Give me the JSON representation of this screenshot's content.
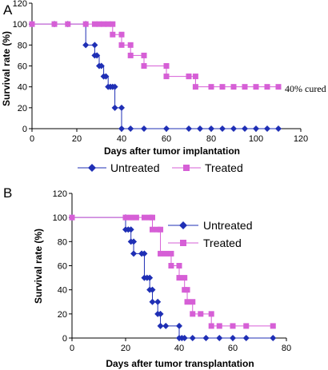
{
  "chart_data": [
    {
      "panel": "A",
      "type": "line",
      "step": true,
      "xlabel": "Days after tumor implantation",
      "ylabel": "Survival rate (%)",
      "xlim": [
        0,
        120
      ],
      "ylim": [
        0,
        120
      ],
      "xticks": [
        0,
        20,
        40,
        60,
        80,
        100,
        120
      ],
      "yticks": [
        0,
        20,
        40,
        60,
        80,
        100,
        120
      ],
      "legend_position": "bottom",
      "annotation": "40% cured",
      "series": [
        {
          "name": "Untreated",
          "color": "#1f2fb5",
          "marker": "diamond",
          "x": [
            0,
            10,
            16,
            24,
            24,
            28,
            28,
            29,
            30,
            31,
            32,
            33,
            34,
            35,
            36,
            37,
            37,
            40,
            40,
            44,
            50,
            60,
            70,
            75,
            80,
            85,
            90,
            95,
            100,
            105,
            110
          ],
          "y": [
            100,
            100,
            100,
            100,
            80,
            80,
            70,
            70,
            60,
            60,
            50,
            50,
            40,
            40,
            40,
            40,
            20,
            20,
            0,
            0,
            0,
            0,
            0,
            0,
            0,
            0,
            0,
            0,
            0,
            0,
            0
          ]
        },
        {
          "name": "Treated",
          "color": "#d65fd6",
          "marker": "square",
          "x": [
            0,
            10,
            16,
            24,
            28,
            30,
            32,
            34,
            36,
            36,
            40,
            40,
            44,
            44,
            50,
            50,
            60,
            60,
            70,
            70,
            73,
            73,
            80,
            85,
            90,
            95,
            100,
            105,
            110
          ],
          "y": [
            100,
            100,
            100,
            100,
            100,
            100,
            100,
            100,
            100,
            90,
            90,
            80,
            80,
            70,
            70,
            60,
            60,
            50,
            50,
            50,
            50,
            40,
            40,
            40,
            40,
            40,
            40,
            40,
            40
          ]
        }
      ]
    },
    {
      "panel": "B",
      "type": "line",
      "step": true,
      "xlabel": "Days after tumor transplantation",
      "ylabel": "Survival rate (%)",
      "xlim": [
        0,
        80
      ],
      "ylim": [
        0,
        120
      ],
      "xticks": [
        0,
        20,
        40,
        60,
        80
      ],
      "yticks": [
        0,
        20,
        40,
        60,
        80,
        100,
        120
      ],
      "legend_position": "right",
      "series": [
        {
          "name": "Untreated",
          "color": "#1f2fb5",
          "marker": "diamond",
          "x": [
            0,
            20,
            20,
            21,
            22,
            22,
            23,
            23,
            26,
            27,
            27,
            28,
            29,
            29,
            30,
            30,
            32,
            32,
            33,
            33,
            35,
            40,
            40,
            41,
            42,
            45,
            50,
            55,
            60,
            65,
            75
          ],
          "y": [
            100,
            100,
            90,
            90,
            90,
            80,
            80,
            70,
            70,
            70,
            50,
            50,
            50,
            40,
            40,
            30,
            30,
            20,
            20,
            10,
            10,
            10,
            0,
            0,
            0,
            0,
            0,
            0,
            0,
            0,
            0
          ]
        },
        {
          "name": "Treated",
          "color": "#d65fd6",
          "marker": "square",
          "x": [
            0,
            20,
            22,
            24,
            27,
            29,
            30,
            30,
            32,
            33,
            33,
            35,
            37,
            37,
            40,
            40,
            42,
            42,
            43,
            43,
            45,
            45,
            48,
            52,
            52,
            55,
            60,
            65,
            75
          ],
          "y": [
            100,
            100,
            100,
            100,
            100,
            100,
            100,
            90,
            90,
            90,
            70,
            70,
            70,
            60,
            60,
            50,
            50,
            40,
            40,
            30,
            30,
            20,
            20,
            20,
            10,
            10,
            10,
            10,
            10
          ]
        }
      ]
    }
  ]
}
